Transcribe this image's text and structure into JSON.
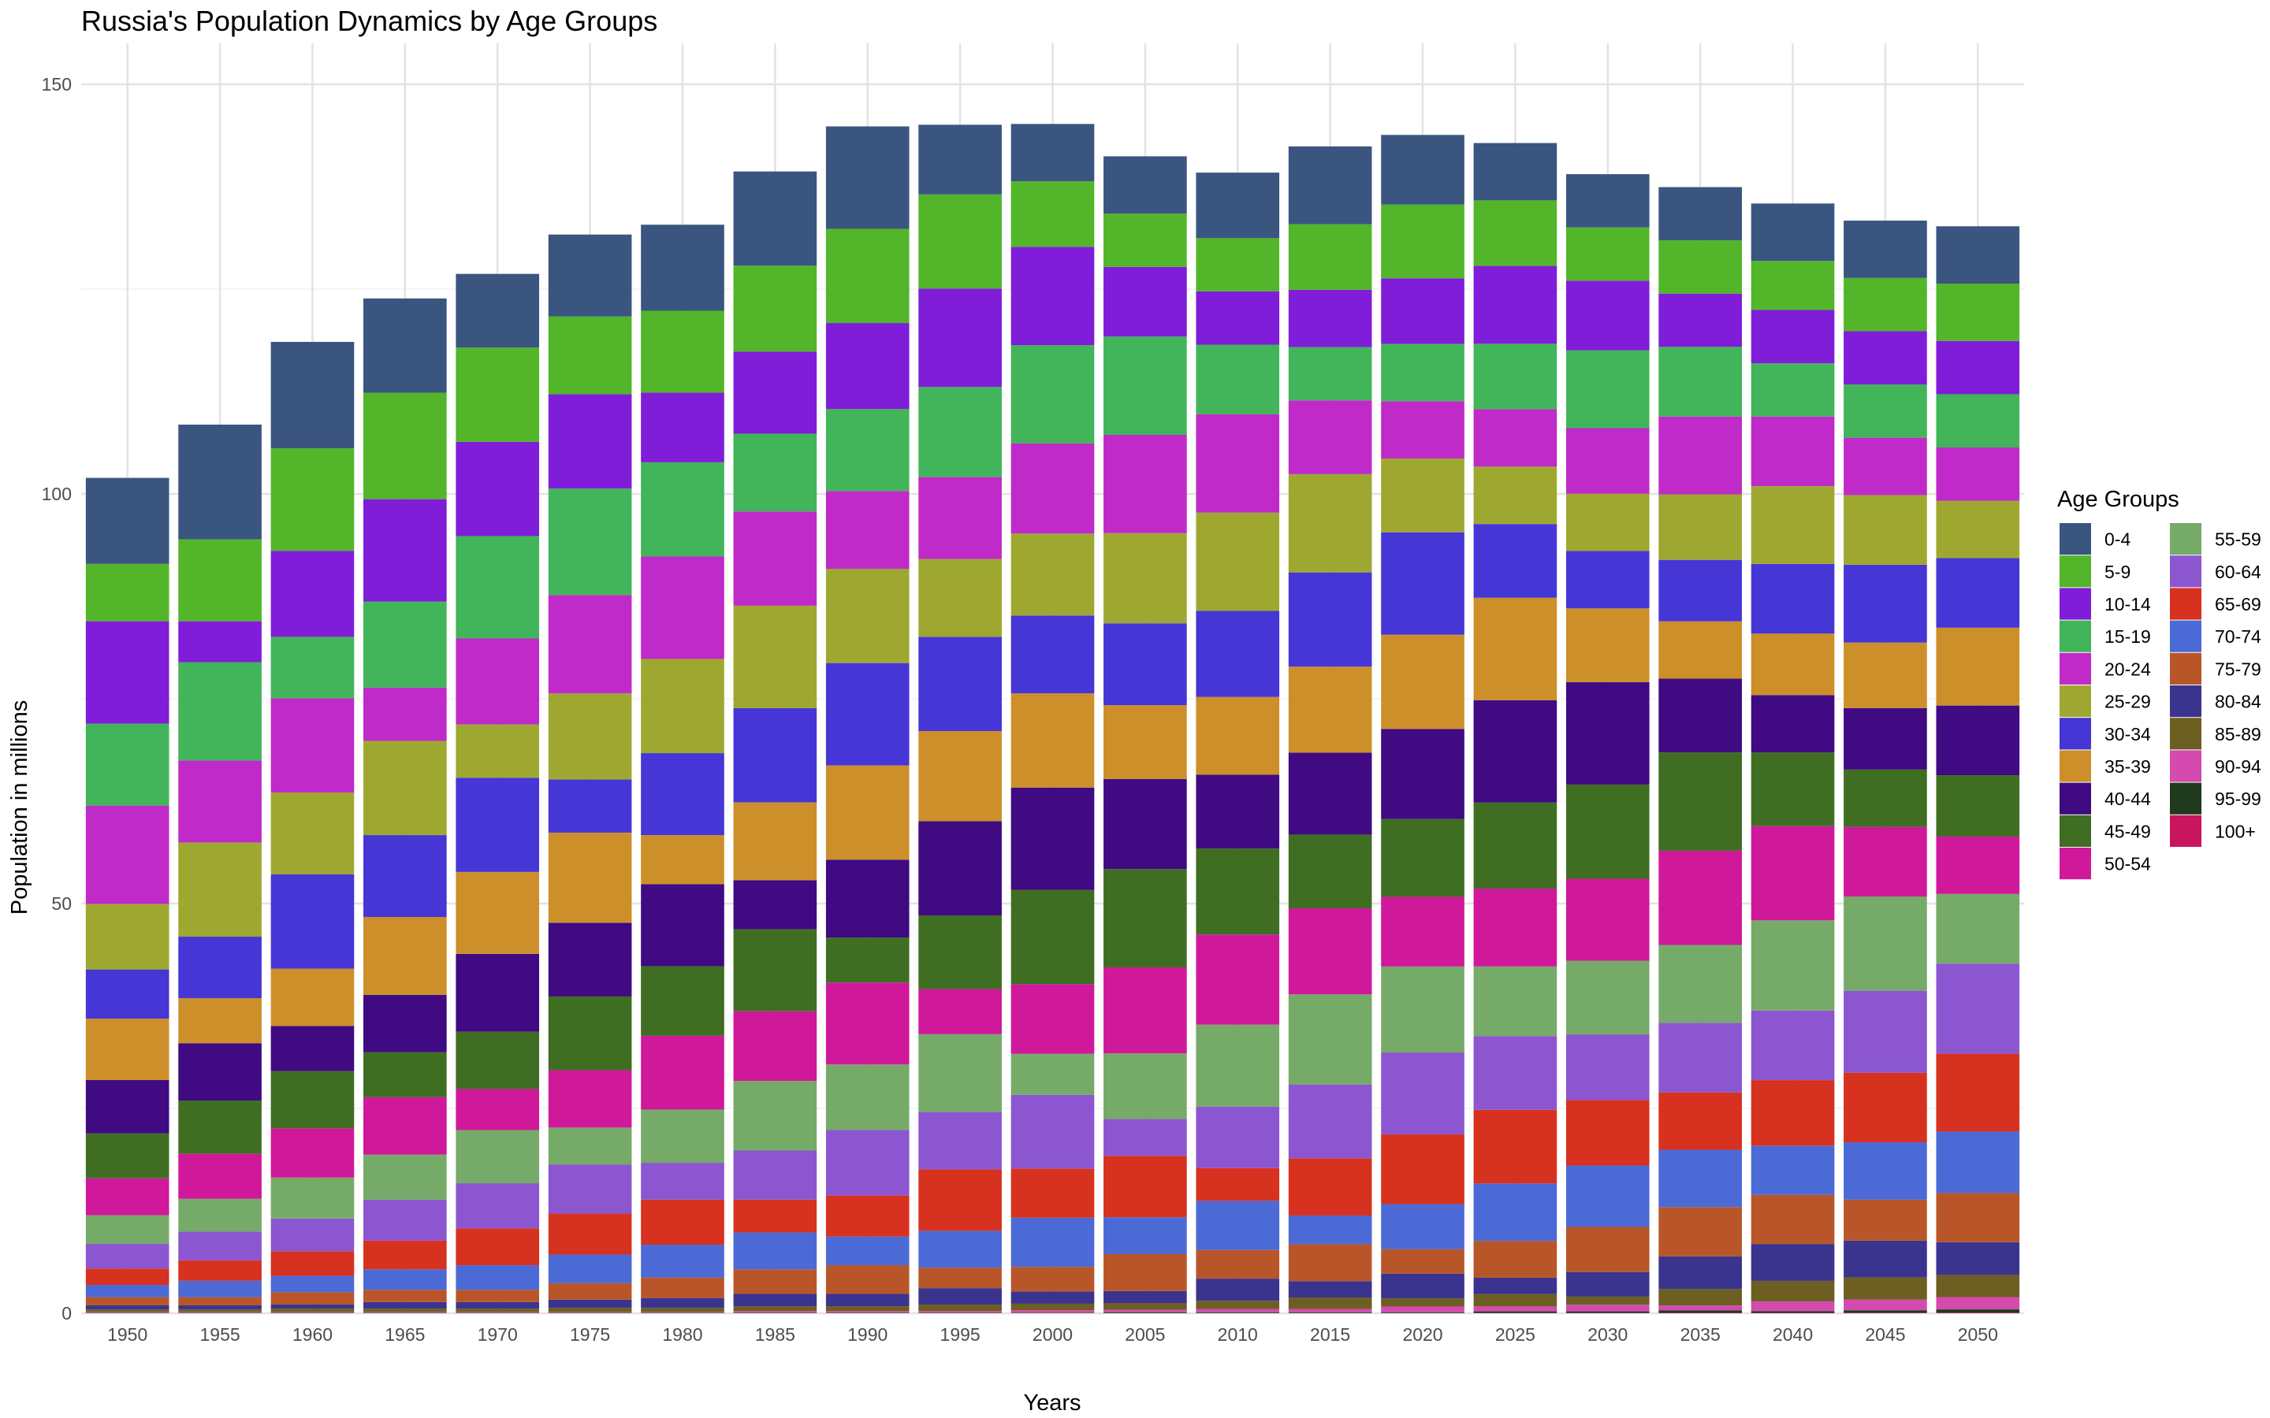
{
  "chart_data": {
    "type": "bar",
    "stacked": true,
    "title": "Russia's Population Dynamics by Age Groups",
    "xlabel": "Years",
    "ylabel": "Population in millions",
    "ylim": [
      0,
      155
    ],
    "y_ticks": [
      0,
      50,
      100,
      150
    ],
    "grid": true,
    "legend_title": "Age Groups",
    "legend_position": "right",
    "categories": [
      "1950",
      "1955",
      "1960",
      "1965",
      "1970",
      "1975",
      "1980",
      "1985",
      "1990",
      "1995",
      "2000",
      "2005",
      "2010",
      "2015",
      "2020",
      "2025",
      "2030",
      "2035",
      "2040",
      "2045",
      "2050"
    ],
    "series": [
      {
        "name": "0-4",
        "color": "#3a5580",
        "values": [
          10.5,
          14.0,
          13.0,
          11.5,
          9.0,
          10.0,
          10.5,
          11.5,
          12.5,
          8.5,
          7.0,
          7.0,
          8.0,
          9.5,
          8.5,
          7.0,
          6.5,
          6.5,
          7.0,
          7.0,
          7.0
        ]
      },
      {
        "name": "5-9",
        "color": "#52b52a",
        "values": [
          7.0,
          10.0,
          12.5,
          13.0,
          11.5,
          9.5,
          10.0,
          10.5,
          11.5,
          11.5,
          8.0,
          6.5,
          6.5,
          8.0,
          9.0,
          8.0,
          6.5,
          6.5,
          6.0,
          6.5,
          7.0
        ]
      },
      {
        "name": "10-14",
        "color": "#7f1dd8",
        "values": [
          12.5,
          5.0,
          10.5,
          12.5,
          11.5,
          11.5,
          8.5,
          10.0,
          10.5,
          12.0,
          12.0,
          8.5,
          6.5,
          7.0,
          8.0,
          9.5,
          8.5,
          6.5,
          6.5,
          6.5,
          6.5
        ]
      },
      {
        "name": "15-19",
        "color": "#42b45a",
        "values": [
          10.0,
          12.0,
          7.5,
          10.5,
          12.5,
          13.0,
          11.5,
          9.5,
          10.0,
          11.0,
          12.0,
          12.0,
          8.5,
          6.5,
          7.0,
          8.0,
          9.5,
          8.5,
          6.5,
          6.5,
          6.5
        ]
      },
      {
        "name": "20-24",
        "color": "#c02ac8",
        "values": [
          12.0,
          10.0,
          11.5,
          6.5,
          10.5,
          12.0,
          12.5,
          11.5,
          9.5,
          10.0,
          11.0,
          12.0,
          12.0,
          9.0,
          7.0,
          7.0,
          8.0,
          9.5,
          8.5,
          7.0,
          6.5
        ]
      },
      {
        "name": "25-29",
        "color": "#9ea831",
        "values": [
          8.0,
          11.5,
          10.0,
          11.5,
          6.5,
          10.5,
          11.5,
          12.5,
          11.5,
          9.5,
          10.0,
          11.0,
          12.0,
          12.0,
          9.0,
          7.0,
          7.0,
          8.0,
          9.5,
          8.5,
          7.0
        ]
      },
      {
        "name": "30-34",
        "color": "#4636d6",
        "values": [
          6.0,
          7.5,
          11.5,
          10.0,
          11.5,
          6.5,
          10.0,
          11.5,
          12.5,
          11.5,
          9.5,
          10.0,
          10.5,
          11.5,
          12.5,
          9.0,
          7.0,
          7.5,
          8.5,
          9.5,
          8.5
        ]
      },
      {
        "name": "35-39",
        "color": "#cc8f2a",
        "values": [
          7.5,
          5.5,
          7.0,
          9.5,
          10.0,
          11.0,
          6.0,
          9.5,
          11.5,
          11.0,
          11.5,
          9.0,
          9.5,
          10.5,
          11.5,
          12.5,
          9.0,
          7.0,
          7.5,
          8.0,
          9.5
        ]
      },
      {
        "name": "40-44",
        "color": "#3f0a82",
        "values": [
          6.5,
          7.0,
          5.5,
          7.0,
          9.5,
          9.0,
          10.0,
          6.0,
          9.5,
          11.5,
          12.5,
          11.0,
          9.0,
          10.0,
          11.0,
          12.5,
          12.5,
          9.0,
          7.0,
          7.5,
          8.5
        ]
      },
      {
        "name": "45-49",
        "color": "#3f6e22",
        "values": [
          5.5,
          6.5,
          7.0,
          5.5,
          7.0,
          9.0,
          8.5,
          10.0,
          5.5,
          9.0,
          11.5,
          12.0,
          10.5,
          9.0,
          9.5,
          10.5,
          11.5,
          12.0,
          9.0,
          7.0,
          7.5
        ]
      },
      {
        "name": "50-54",
        "color": "#d0189b",
        "values": [
          4.5,
          5.5,
          6.0,
          7.0,
          5.0,
          7.0,
          9.0,
          8.5,
          10.0,
          5.5,
          8.5,
          10.5,
          11.0,
          10.5,
          8.5,
          9.5,
          10.0,
          11.5,
          11.5,
          8.5,
          7.0
        ]
      },
      {
        "name": "55-59",
        "color": "#76aa68",
        "values": [
          3.5,
          4.0,
          5.0,
          5.5,
          6.5,
          4.5,
          6.5,
          8.5,
          8.0,
          9.5,
          5.0,
          8.0,
          10.0,
          11.0,
          10.5,
          8.5,
          9.0,
          9.5,
          11.0,
          11.5,
          8.5
        ]
      },
      {
        "name": "60-64",
        "color": "#8c56d0",
        "values": [
          3.0,
          3.5,
          4.0,
          5.0,
          5.5,
          6.0,
          4.5,
          6.0,
          8.0,
          7.0,
          9.0,
          4.5,
          7.5,
          9.0,
          10.0,
          9.0,
          8.0,
          8.5,
          8.5,
          10.0,
          11.0
        ]
      },
      {
        "name": "65-69",
        "color": "#d7311f",
        "values": [
          2.0,
          2.5,
          3.0,
          3.5,
          4.5,
          5.0,
          5.5,
          4.0,
          5.0,
          7.5,
          6.0,
          7.5,
          4.0,
          7.0,
          8.5,
          9.0,
          8.0,
          7.0,
          8.0,
          8.5,
          9.5
        ]
      },
      {
        "name": "70-74",
        "color": "#4c6ad6",
        "values": [
          1.5,
          2.0,
          2.0,
          2.5,
          3.0,
          3.5,
          4.0,
          4.5,
          3.5,
          4.5,
          6.0,
          4.5,
          6.0,
          3.5,
          5.5,
          7.0,
          7.5,
          7.0,
          6.0,
          7.0,
          7.5
        ]
      },
      {
        "name": "75-79",
        "color": "#b8562a",
        "values": [
          1.0,
          1.0,
          1.5,
          1.5,
          1.5,
          2.0,
          2.5,
          3.0,
          3.5,
          2.5,
          3.0,
          4.5,
          3.5,
          4.5,
          3.0,
          4.5,
          5.5,
          6.0,
          6.0,
          5.0,
          6.0
        ]
      },
      {
        "name": "80-84",
        "color": "#3a348e",
        "values": [
          0.5,
          0.5,
          0.5,
          0.8,
          0.8,
          1.0,
          1.2,
          1.5,
          1.5,
          2.0,
          1.5,
          1.5,
          2.7,
          2.0,
          3.0,
          2.0,
          3.0,
          4.0,
          4.5,
          4.5,
          4.0
        ]
      },
      {
        "name": "85-89",
        "color": "#6d5e22",
        "values": [
          0.3,
          0.3,
          0.4,
          0.4,
          0.4,
          0.5,
          0.5,
          0.6,
          0.6,
          0.8,
          0.8,
          0.8,
          1.0,
          1.4,
          1.0,
          1.5,
          1.0,
          2.0,
          2.5,
          2.7,
          2.7
        ]
      },
      {
        "name": "90-94",
        "color": "#d54aae",
        "values": [
          0.1,
          0.1,
          0.1,
          0.1,
          0.1,
          0.1,
          0.1,
          0.2,
          0.2,
          0.2,
          0.3,
          0.3,
          0.4,
          0.4,
          0.7,
          0.6,
          0.8,
          0.6,
          1.2,
          1.3,
          1.5
        ]
      },
      {
        "name": "95-99",
        "color": "#1f3a1c",
        "values": [
          0.05,
          0.05,
          0.05,
          0.05,
          0.05,
          0.05,
          0.05,
          0.05,
          0.05,
          0.05,
          0.05,
          0.1,
          0.1,
          0.1,
          0.1,
          0.2,
          0.2,
          0.3,
          0.2,
          0.3,
          0.4
        ]
      },
      {
        "name": "100+",
        "color": "#c9155e",
        "values": [
          0.01,
          0.01,
          0.01,
          0.01,
          0.01,
          0.01,
          0.01,
          0.01,
          0.01,
          0.01,
          0.01,
          0.01,
          0.02,
          0.02,
          0.02,
          0.03,
          0.03,
          0.05,
          0.05,
          0.06,
          0.07
        ]
      }
    ]
  }
}
